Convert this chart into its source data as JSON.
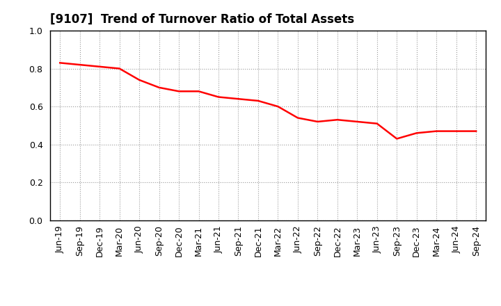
{
  "title": "[9107]  Trend of Turnover Ratio of Total Assets",
  "x_labels": [
    "Jun-19",
    "Sep-19",
    "Dec-19",
    "Mar-20",
    "Jun-20",
    "Sep-20",
    "Dec-20",
    "Mar-21",
    "Jun-21",
    "Sep-21",
    "Dec-21",
    "Mar-22",
    "Jun-22",
    "Sep-22",
    "Dec-22",
    "Mar-23",
    "Jun-23",
    "Sep-23",
    "Dec-23",
    "Mar-24",
    "Jun-24",
    "Sep-24"
  ],
  "y_values": [
    0.83,
    0.82,
    0.81,
    0.8,
    0.74,
    0.7,
    0.68,
    0.68,
    0.65,
    0.64,
    0.63,
    0.6,
    0.54,
    0.52,
    0.53,
    0.52,
    0.51,
    0.43,
    0.46,
    0.47,
    0.47,
    0.47
  ],
  "line_color": "#ff0000",
  "line_width": 1.8,
  "ylim": [
    0.0,
    1.0
  ],
  "yticks": [
    0.0,
    0.2,
    0.4,
    0.6,
    0.8,
    1.0
  ],
  "grid_color": "#999999",
  "background_color": "#ffffff",
  "title_fontsize": 12,
  "tick_fontsize": 9
}
